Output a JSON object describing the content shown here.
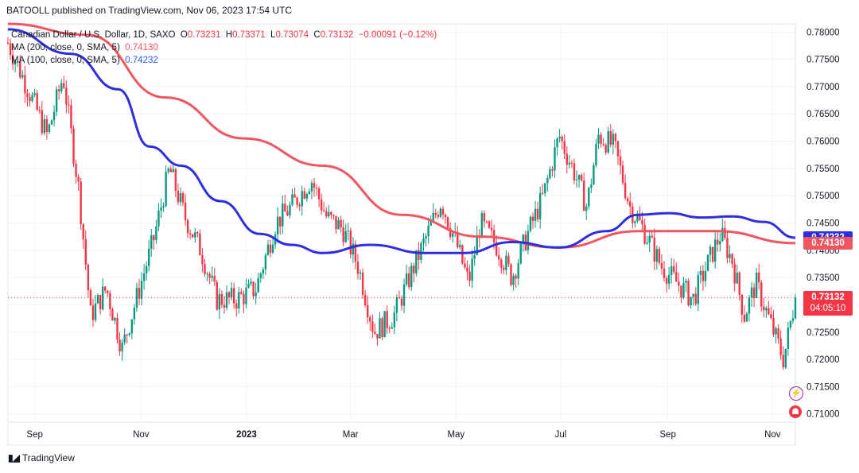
{
  "header": {
    "credit": "BATOOLL published on TradingView.com, Nov 06, 2023 17:54 UTC"
  },
  "legend": {
    "symbol": "Canadian Dollar / U.S. Dollar, 1D, SAXO",
    "open_label": "O",
    "open": "0.73231",
    "high_label": "H",
    "high": "0.73371",
    "low_label": "L",
    "low": "0.73074",
    "close_label": "C",
    "close": "0.73132",
    "change": "−0.00091 (−0.12%)",
    "ma200_label": "MA (200, close, 0, SMA, 5)",
    "ma200_value": "0.74130",
    "ma100_label": "MA (100, close, 0, SMA, 5)",
    "ma100_value": "0.74232"
  },
  "price_tags": {
    "ma100": "0.74232",
    "ma200": "0.74130",
    "last": "0.73132",
    "countdown": "04:05:10"
  },
  "footer": {
    "brand": "TradingView"
  },
  "colors": {
    "up": "#089981",
    "down": "#f23645",
    "ma200": "#f05560",
    "ma100": "#2e2ee0"
  },
  "chart_data": {
    "type": "candlestick",
    "y_ticks": [
      0.78,
      0.775,
      0.77,
      0.765,
      0.76,
      0.755,
      0.75,
      0.745,
      0.74,
      0.735,
      0.73,
      0.725,
      0.72,
      0.715,
      0.71
    ],
    "y_tick_labels": [
      "0.78000",
      "0.77500",
      "0.77000",
      "0.76500",
      "0.76000",
      "0.75500",
      "0.75000",
      "0.74500",
      "0.74000",
      "0.73500",
      "0.73000",
      "0.72500",
      "0.72000",
      "0.71500",
      "0.71000"
    ],
    "ylim": [
      0.7085,
      0.7815
    ],
    "x_labels": [
      {
        "label": "Sep",
        "t": 0.034
      },
      {
        "label": "Nov",
        "t": 0.169
      },
      {
        "label": "2023",
        "t": 0.303
      },
      {
        "label": "Mar",
        "t": 0.435
      },
      {
        "label": "May",
        "t": 0.569
      },
      {
        "label": "Jul",
        "t": 0.702
      },
      {
        "label": "Sep",
        "t": 0.838
      },
      {
        "label": "Nov",
        "t": 0.971
      }
    ],
    "x_range": [
      "2022-08-17",
      "2023-11-06"
    ],
    "price_path": [
      [
        0.0,
        0.778
      ],
      [
        0.03,
        0.768
      ],
      [
        0.05,
        0.761
      ],
      [
        0.07,
        0.772
      ],
      [
        0.09,
        0.751
      ],
      [
        0.105,
        0.728
      ],
      [
        0.125,
        0.733
      ],
      [
        0.145,
        0.722
      ],
      [
        0.165,
        0.732
      ],
      [
        0.185,
        0.742
      ],
      [
        0.205,
        0.755
      ],
      [
        0.225,
        0.746
      ],
      [
        0.245,
        0.74
      ],
      [
        0.265,
        0.731
      ],
      [
        0.29,
        0.731
      ],
      [
        0.315,
        0.733
      ],
      [
        0.34,
        0.745
      ],
      [
        0.36,
        0.748
      ],
      [
        0.385,
        0.753
      ],
      [
        0.405,
        0.746
      ],
      [
        0.425,
        0.744
      ],
      [
        0.445,
        0.737
      ],
      [
        0.465,
        0.725
      ],
      [
        0.49,
        0.728
      ],
      [
        0.51,
        0.735
      ],
      [
        0.53,
        0.742
      ],
      [
        0.55,
        0.749
      ],
      [
        0.57,
        0.741
      ],
      [
        0.585,
        0.734
      ],
      [
        0.6,
        0.745
      ],
      [
        0.62,
        0.741
      ],
      [
        0.64,
        0.735
      ],
      [
        0.66,
        0.743
      ],
      [
        0.68,
        0.75
      ],
      [
        0.7,
        0.761
      ],
      [
        0.72,
        0.754
      ],
      [
        0.735,
        0.748
      ],
      [
        0.75,
        0.761
      ],
      [
        0.77,
        0.759
      ],
      [
        0.79,
        0.748
      ],
      [
        0.81,
        0.743
      ],
      [
        0.83,
        0.737
      ],
      [
        0.85,
        0.734
      ],
      [
        0.87,
        0.731
      ],
      [
        0.89,
        0.738
      ],
      [
        0.905,
        0.743
      ],
      [
        0.92,
        0.738
      ],
      [
        0.935,
        0.728
      ],
      [
        0.95,
        0.734
      ],
      [
        0.965,
        0.728
      ],
      [
        0.985,
        0.72
      ],
      [
        1.0,
        0.7313
      ]
    ],
    "series": [
      {
        "name": "MA (200, close, 0, SMA, 5)",
        "color": "#f05560",
        "points": [
          [
            0.0,
            0.7815
          ],
          [
            0.1,
            0.7795
          ],
          [
            0.2,
            0.768
          ],
          [
            0.3,
            0.7605
          ],
          [
            0.4,
            0.7555
          ],
          [
            0.5,
            0.7465
          ],
          [
            0.6,
            0.7425
          ],
          [
            0.7,
            0.7405
          ],
          [
            0.8,
            0.7435
          ],
          [
            0.9,
            0.7435
          ],
          [
            1.0,
            0.7413
          ]
        ]
      },
      {
        "name": "MA (100, close, 0, SMA, 5)",
        "color": "#2e2ee0",
        "points": [
          [
            0.0,
            0.7805
          ],
          [
            0.08,
            0.776
          ],
          [
            0.14,
            0.7695
          ],
          [
            0.18,
            0.759
          ],
          [
            0.22,
            0.7555
          ],
          [
            0.27,
            0.749
          ],
          [
            0.32,
            0.743
          ],
          [
            0.36,
            0.741
          ],
          [
            0.4,
            0.7395
          ],
          [
            0.46,
            0.741
          ],
          [
            0.53,
            0.7395
          ],
          [
            0.58,
            0.7395
          ],
          [
            0.64,
            0.7415
          ],
          [
            0.7,
            0.7405
          ],
          [
            0.76,
            0.7435
          ],
          [
            0.8,
            0.7465
          ],
          [
            0.84,
            0.7468
          ],
          [
            0.88,
            0.746
          ],
          [
            0.92,
            0.7462
          ],
          [
            0.96,
            0.7452
          ],
          [
            1.0,
            0.7423
          ]
        ]
      }
    ],
    "last_price": 0.73132
  }
}
